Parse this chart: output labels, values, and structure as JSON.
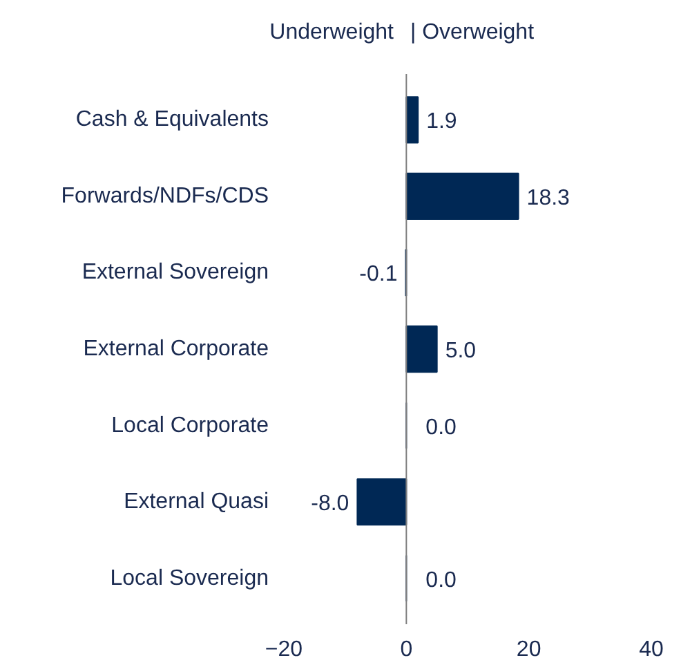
{
  "chart_data": {
    "type": "bar",
    "orientation": "horizontal",
    "categories": [
      "Cash & Equivalents",
      "Forwards/NDFs/CDS",
      "External Sovereign",
      "External Corporate",
      "Local Corporate",
      "External Quasi",
      "Local Sovereign"
    ],
    "values": [
      1.9,
      18.3,
      -0.1,
      5.0,
      0.0,
      -8.0,
      0.0
    ],
    "value_labels": [
      "1.9",
      "18.3",
      "-0.1",
      "5.0",
      "0.0",
      "-8.0",
      "0.0"
    ],
    "color": "#002855",
    "xlim": [
      -20,
      40
    ],
    "xticks": [
      -20,
      0,
      20,
      40
    ],
    "ref_lines": [
      {
        "axis": "x",
        "value": 0,
        "color": "#7f7f7f"
      }
    ],
    "annotations": [
      "Underweight",
      "| Overweight"
    ],
    "grid": false
  }
}
